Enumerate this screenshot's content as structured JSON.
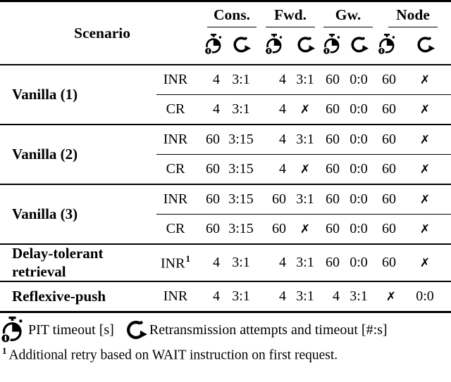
{
  "table": {
    "scenario_header": "Scenario",
    "groups": [
      {
        "label": "Cons."
      },
      {
        "label": "Fwd."
      },
      {
        "label": "Gw."
      },
      {
        "label": "Node"
      }
    ],
    "icons": {
      "pit": "stopwatch-quarter-dial-icon",
      "retransmission": "circular-arrow-retry-icon"
    },
    "cross_mark": "✗",
    "blocks": [
      {
        "scenario": "Vanilla (1)",
        "rows": [
          {
            "variant": "INR",
            "sup": "",
            "cells": [
              "4",
              "3:1",
              "4",
              "3:1",
              "60",
              "0:0",
              "60",
              "✗"
            ]
          },
          {
            "variant": "CR",
            "sup": "",
            "cells": [
              "4",
              "3:1",
              "4",
              "✗",
              "60",
              "0:0",
              "60",
              "✗"
            ]
          }
        ]
      },
      {
        "scenario": "Vanilla (2)",
        "rows": [
          {
            "variant": "INR",
            "sup": "",
            "cells": [
              "60",
              "3:15",
              "4",
              "3:1",
              "60",
              "0:0",
              "60",
              "✗"
            ]
          },
          {
            "variant": "CR",
            "sup": "",
            "cells": [
              "60",
              "3:15",
              "4",
              "✗",
              "60",
              "0:0",
              "60",
              "✗"
            ]
          }
        ]
      },
      {
        "scenario": "Vanilla (3)",
        "rows": [
          {
            "variant": "INR",
            "sup": "",
            "cells": [
              "60",
              "3:15",
              "60",
              "3:1",
              "60",
              "0:0",
              "60",
              "✗"
            ]
          },
          {
            "variant": "CR",
            "sup": "",
            "cells": [
              "60",
              "3:15",
              "60",
              "✗",
              "60",
              "0:0",
              "60",
              "✗"
            ]
          }
        ]
      },
      {
        "scenario": "Delay-tolerant retrieval",
        "rows": [
          {
            "variant": "INR",
            "sup": "1",
            "cells": [
              "4",
              "3:1",
              "4",
              "3:1",
              "60",
              "0:0",
              "60",
              "✗"
            ]
          }
        ]
      },
      {
        "scenario": "Reflexive-push",
        "rows": [
          {
            "variant": "INR",
            "sup": "",
            "cells": [
              "4",
              "3:1",
              "4",
              "3:1",
              "4",
              "3:1",
              "✗",
              "0:0"
            ]
          }
        ]
      }
    ]
  },
  "legend": {
    "pit": "PIT timeout [s]",
    "retransmission": "Retransmission attempts and timeout [#:s]"
  },
  "footnote": {
    "marker": "1",
    "text": "Additional retry based on WAIT instruction on first request."
  },
  "colors": {
    "ink": "#000000",
    "paper": "#ffffff"
  }
}
